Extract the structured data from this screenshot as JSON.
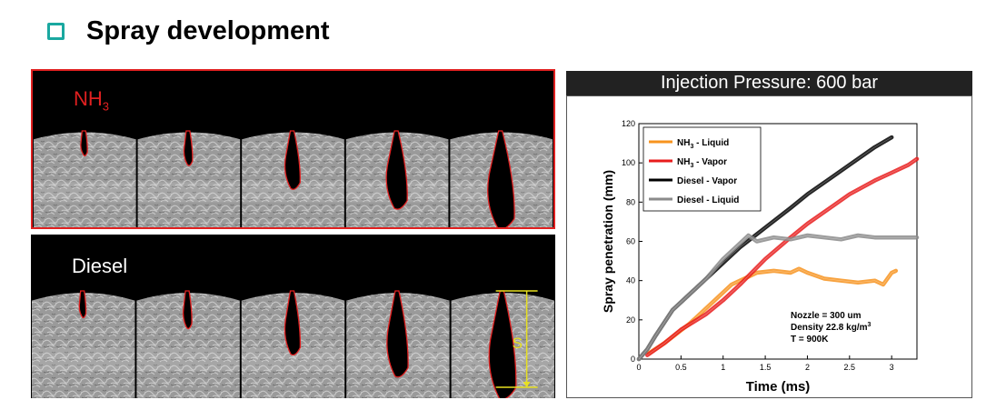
{
  "page": {
    "heading": "Spray development"
  },
  "left": {
    "top_panel": {
      "label_main": "NH",
      "label_sub": "3",
      "label_color": "#e02020",
      "outline_color": "#e02020"
    },
    "bottom_panel": {
      "label_main": "Diesel",
      "label_sub": "",
      "label_color": "#ffffff",
      "scale_label": "S",
      "scale_color": "#e8e020"
    }
  },
  "chart_header": "Injection Pressure: 600 bar",
  "chart_data": {
    "type": "line",
    "xlabel": "Time (ms)",
    "ylabel": "Spray penetration (mm)",
    "xlim": [
      0,
      3.3
    ],
    "ylim": [
      0,
      120
    ],
    "xticks": [
      0,
      0.5,
      1,
      1.5,
      2,
      2.5,
      3
    ],
    "xtick_labels": [
      "0",
      "0.5",
      "1",
      "1.5",
      "2",
      "2.5",
      "3"
    ],
    "yticks": [
      0,
      20,
      40,
      60,
      80,
      100,
      120
    ],
    "ytick_labels": [
      "0",
      "20",
      "40",
      "60",
      "80",
      "100",
      "120"
    ],
    "grid": false,
    "legend_position": "top-left",
    "series": [
      {
        "name_main": "NH",
        "name_sub": "3",
        "name_suffix": " - Liquid",
        "color": "#f7931e",
        "x": [
          0.12,
          0.3,
          0.6,
          0.9,
          1.1,
          1.2,
          1.3,
          1.4,
          1.6,
          1.8,
          1.9,
          2.0,
          2.2,
          2.4,
          2.6,
          2.8,
          2.9,
          3.0,
          3.05
        ],
        "y": [
          3,
          8,
          18,
          30,
          38,
          40,
          42,
          44,
          45,
          44,
          46,
          44,
          41,
          40,
          39,
          40,
          38,
          44,
          45
        ]
      },
      {
        "name_main": "NH",
        "name_sub": "3",
        "name_suffix": " - Vapor",
        "color": "#e81c1c",
        "x": [
          0.1,
          0.3,
          0.5,
          0.8,
          1.0,
          1.2,
          1.5,
          1.8,
          2.0,
          2.3,
          2.5,
          2.8,
          3.0,
          3.2,
          3.3
        ],
        "y": [
          2,
          8,
          15,
          23,
          30,
          38,
          51,
          62,
          69,
          78,
          84,
          91,
          95,
          99,
          102
        ]
      },
      {
        "name_main": "Diesel - Vapor",
        "name_sub": "",
        "name_suffix": "",
        "color": "#000000",
        "x": [
          0,
          0.1,
          0.2,
          0.4,
          0.6,
          0.8,
          1.0,
          1.2,
          1.5,
          1.8,
          2.0,
          2.3,
          2.5,
          2.8,
          3.0
        ],
        "y": [
          0,
          5,
          12,
          25,
          33,
          41,
          49,
          57,
          67,
          77,
          84,
          93,
          99,
          108,
          113
        ]
      },
      {
        "name_main": "Diesel - Liquid",
        "name_sub": "",
        "name_suffix": "",
        "color": "#8a8a8a",
        "x": [
          0,
          0.1,
          0.2,
          0.4,
          0.6,
          0.8,
          1.0,
          1.2,
          1.3,
          1.4,
          1.6,
          1.8,
          2.0,
          2.2,
          2.4,
          2.6,
          2.8,
          3.0,
          3.3
        ],
        "y": [
          0,
          5,
          12,
          25,
          33,
          41,
          51,
          59,
          63,
          60,
          62,
          61,
          63,
          62,
          61,
          63,
          62,
          62,
          62
        ]
      }
    ],
    "annotations": [
      {
        "main": "Nozzle = 300 um",
        "sup": ""
      },
      {
        "main": "Density 22.8 kg/m",
        "sup": "3"
      },
      {
        "main": "T = 900K",
        "sup": ""
      }
    ]
  }
}
